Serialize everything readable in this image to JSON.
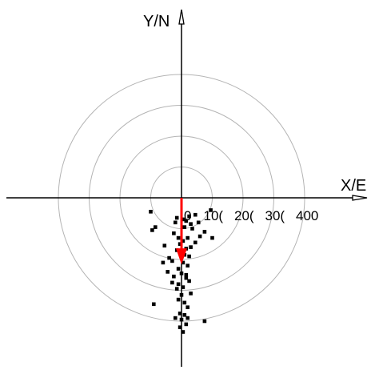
{
  "chart_data": {
    "type": "scatter",
    "title": "",
    "xlabel": "X/E",
    "ylabel": "Y/N",
    "ring_values": [
      100,
      200,
      300,
      400
    ],
    "ring_labels": [
      "0",
      "100",
      "200",
      "300",
      "400"
    ],
    "ring_label_display": [
      "0",
      "10(",
      "20(",
      "30(",
      "400"
    ],
    "xlim": [
      -570,
      605
    ],
    "ylim": [
      -555,
      610
    ],
    "grid": true,
    "grid_style": "concentric-circles",
    "colors": {
      "axes": "#000000",
      "rings": "#b4b4b4",
      "points": "#000000",
      "mean_vector": "#ff0000"
    },
    "mean_vector": {
      "x": 0,
      "y": -195
    },
    "points": [
      {
        "x": -100,
        "y": -45
      },
      {
        "x": 95,
        "y": -40
      },
      {
        "x": -15,
        "y": -65
      },
      {
        "x": -20,
        "y": -80
      },
      {
        "x": 5,
        "y": -70
      },
      {
        "x": 15,
        "y": -75
      },
      {
        "x": 25,
        "y": -60
      },
      {
        "x": 45,
        "y": -55
      },
      {
        "x": 55,
        "y": -80
      },
      {
        "x": 30,
        "y": -85
      },
      {
        "x": -85,
        "y": -95
      },
      {
        "x": -95,
        "y": -105
      },
      {
        "x": 10,
        "y": -95
      },
      {
        "x": 35,
        "y": -100
      },
      {
        "x": 75,
        "y": -110
      },
      {
        "x": 100,
        "y": -130
      },
      {
        "x": 60,
        "y": -125
      },
      {
        "x": -25,
        "y": -115
      },
      {
        "x": -10,
        "y": -130
      },
      {
        "x": 20,
        "y": -130
      },
      {
        "x": 5,
        "y": -140
      },
      {
        "x": 45,
        "y": -145
      },
      {
        "x": -5,
        "y": -150
      },
      {
        "x": -55,
        "y": -155
      },
      {
        "x": 30,
        "y": -160
      },
      {
        "x": 15,
        "y": -165
      },
      {
        "x": -15,
        "y": -170
      },
      {
        "x": 10,
        "y": -185
      },
      {
        "x": -40,
        "y": -195
      },
      {
        "x": 25,
        "y": -190
      },
      {
        "x": -30,
        "y": -205
      },
      {
        "x": 5,
        "y": -210
      },
      {
        "x": -60,
        "y": -210
      },
      {
        "x": 20,
        "y": -220
      },
      {
        "x": -10,
        "y": -230
      },
      {
        "x": 0,
        "y": -245
      },
      {
        "x": -25,
        "y": -255
      },
      {
        "x": 15,
        "y": -260
      },
      {
        "x": -30,
        "y": -275
      },
      {
        "x": -10,
        "y": -280
      },
      {
        "x": 25,
        "y": -270
      },
      {
        "x": 5,
        "y": -290
      },
      {
        "x": -15,
        "y": -295
      },
      {
        "x": 0,
        "y": -315
      },
      {
        "x": 30,
        "y": -310
      },
      {
        "x": -10,
        "y": -330
      },
      {
        "x": 10,
        "y": -340
      },
      {
        "x": -90,
        "y": -345
      },
      {
        "x": 20,
        "y": -355
      },
      {
        "x": -5,
        "y": -375
      },
      {
        "x": 10,
        "y": -380
      },
      {
        "x": 0,
        "y": -395
      },
      {
        "x": 75,
        "y": -400
      },
      {
        "x": 15,
        "y": -410
      },
      {
        "x": -5,
        "y": -420
      },
      {
        "x": 5,
        "y": -435
      },
      {
        "x": 20,
        "y": -390
      },
      {
        "x": -20,
        "y": -390
      },
      {
        "x": 15,
        "y": -250
      },
      {
        "x": -45,
        "y": -240
      }
    ]
  }
}
